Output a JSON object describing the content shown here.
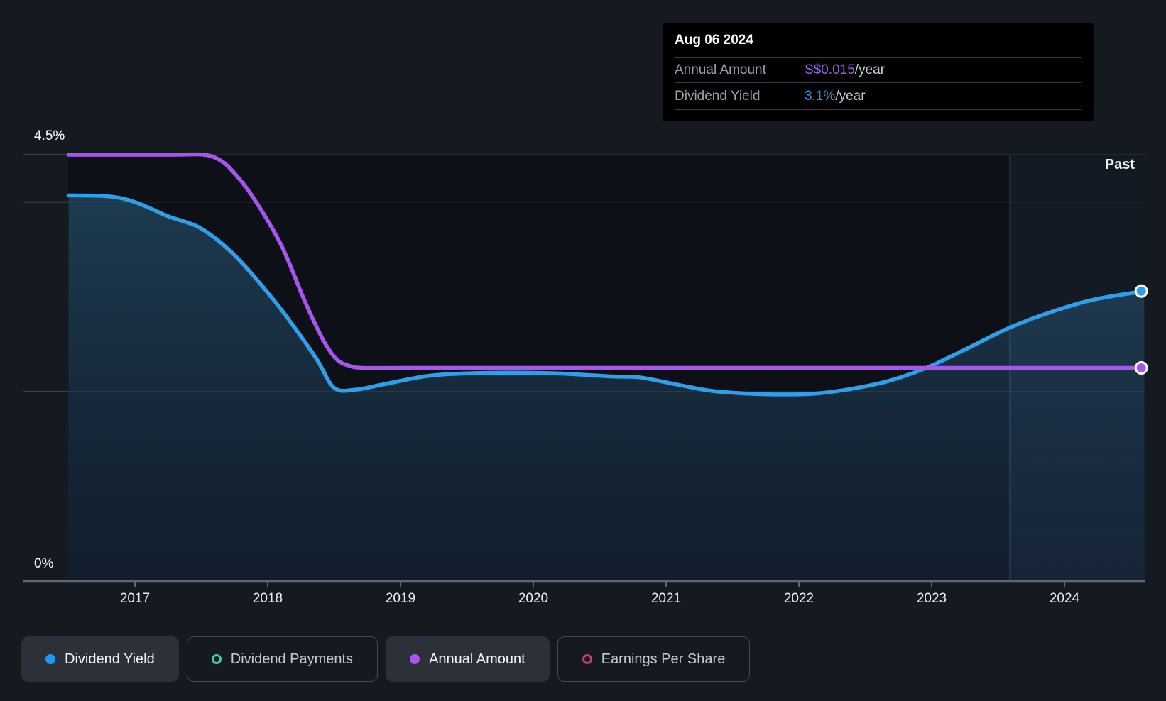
{
  "tooltip": {
    "date": "Aug 06 2024",
    "rows": [
      {
        "label": "Annual Amount",
        "value": "S$0.015",
        "suffix": "/year",
        "color": "#9d5cf0"
      },
      {
        "label": "Dividend Yield",
        "value": "3.1%",
        "suffix": "/year",
        "color": "#2196f3"
      }
    ]
  },
  "past_label": "Past",
  "axis": {
    "y_top_label": "4.5%",
    "y_bottom_label": "0%",
    "x_labels": [
      "2017",
      "2018",
      "2019",
      "2020",
      "2021",
      "2022",
      "2023",
      "2024"
    ]
  },
  "legend": {
    "items": [
      {
        "label": "Dividend Yield",
        "marker": "filled",
        "color": "#2196f3",
        "active": true
      },
      {
        "label": "Dividend Payments",
        "marker": "open",
        "color": "#45c7ae",
        "active": false
      },
      {
        "label": "Annual Amount",
        "marker": "filled",
        "color": "#a855f0",
        "active": true
      },
      {
        "label": "Earnings Per Share",
        "marker": "open",
        "color": "#c13d78",
        "active": false
      }
    ]
  },
  "colors": {
    "page_bg": "#151a21",
    "plot_bg": "#0d1117",
    "past_overlay": "rgba(100,160,215,0.07)",
    "divider": "rgba(140,180,220,0.25)",
    "gridline": "rgba(180,200,220,0.13)",
    "margin_gridline": "#3a3f47",
    "axis_line": "#62676f",
    "area_top": "rgba(62,140,190,0.34)",
    "area_bottom": "rgba(35,80,130,0.20)"
  },
  "chart_data": {
    "type": "area",
    "title": "Dividend yield history with annual dividend amount",
    "x_axis": {
      "ticks": [
        2017,
        2018,
        2019,
        2020,
        2021,
        2022,
        2023,
        2024
      ],
      "range": [
        2016.5,
        2024.6
      ]
    },
    "y_axis": {
      "unit": "%",
      "range": [
        0,
        4.5
      ],
      "gridlines_pct": [
        4.5,
        4.0,
        2.0
      ],
      "labeled_pct": [
        4.5,
        0
      ]
    },
    "past_divider_x": 2023.59,
    "series": [
      {
        "name": "Dividend Yield",
        "color": "#2e9fe8",
        "fill": true,
        "end_marker": true,
        "current_display": "3.1%/year",
        "points": [
          [
            2016.5,
            4.07
          ],
          [
            2016.8,
            4.06
          ],
          [
            2017.0,
            4.0
          ],
          [
            2017.25,
            3.85
          ],
          [
            2017.5,
            3.72
          ],
          [
            2017.75,
            3.44
          ],
          [
            2018.02,
            3.01
          ],
          [
            2018.2,
            2.68
          ],
          [
            2018.37,
            2.34
          ],
          [
            2018.5,
            2.04
          ],
          [
            2018.66,
            2.02
          ],
          [
            2018.85,
            2.07
          ],
          [
            2019.18,
            2.16
          ],
          [
            2019.46,
            2.19
          ],
          [
            2019.83,
            2.2
          ],
          [
            2020.21,
            2.19
          ],
          [
            2020.58,
            2.16
          ],
          [
            2020.8,
            2.15
          ],
          [
            2021.06,
            2.08
          ],
          [
            2021.33,
            2.01
          ],
          [
            2021.6,
            1.98
          ],
          [
            2021.87,
            1.97
          ],
          [
            2022.13,
            1.98
          ],
          [
            2022.4,
            2.03
          ],
          [
            2022.67,
            2.11
          ],
          [
            2022.96,
            2.25
          ],
          [
            2023.26,
            2.45
          ],
          [
            2023.58,
            2.67
          ],
          [
            2023.9,
            2.84
          ],
          [
            2024.22,
            2.97
          ],
          [
            2024.6,
            3.06
          ]
        ]
      },
      {
        "name": "Annual Amount",
        "color": "#a855f0",
        "fill": false,
        "end_marker": true,
        "current_display": "S$0.015/year",
        "points": [
          [
            2016.5,
            4.5
          ],
          [
            2017.0,
            4.5
          ],
          [
            2017.3,
            4.5
          ],
          [
            2017.52,
            4.5
          ],
          [
            2017.63,
            4.45
          ],
          [
            2017.72,
            4.35
          ],
          [
            2017.88,
            4.07
          ],
          [
            2018.1,
            3.55
          ],
          [
            2018.28,
            2.95
          ],
          [
            2018.42,
            2.54
          ],
          [
            2018.52,
            2.34
          ],
          [
            2018.62,
            2.27
          ],
          [
            2018.72,
            2.25
          ],
          [
            2019.0,
            2.25
          ],
          [
            2019.5,
            2.25
          ],
          [
            2020.0,
            2.25
          ],
          [
            2020.5,
            2.25
          ],
          [
            2021.0,
            2.25
          ],
          [
            2021.5,
            2.25
          ],
          [
            2022.0,
            2.25
          ],
          [
            2022.5,
            2.25
          ],
          [
            2023.0,
            2.25
          ],
          [
            2023.5,
            2.25
          ],
          [
            2024.0,
            2.25
          ],
          [
            2024.6,
            2.25
          ]
        ]
      }
    ]
  }
}
